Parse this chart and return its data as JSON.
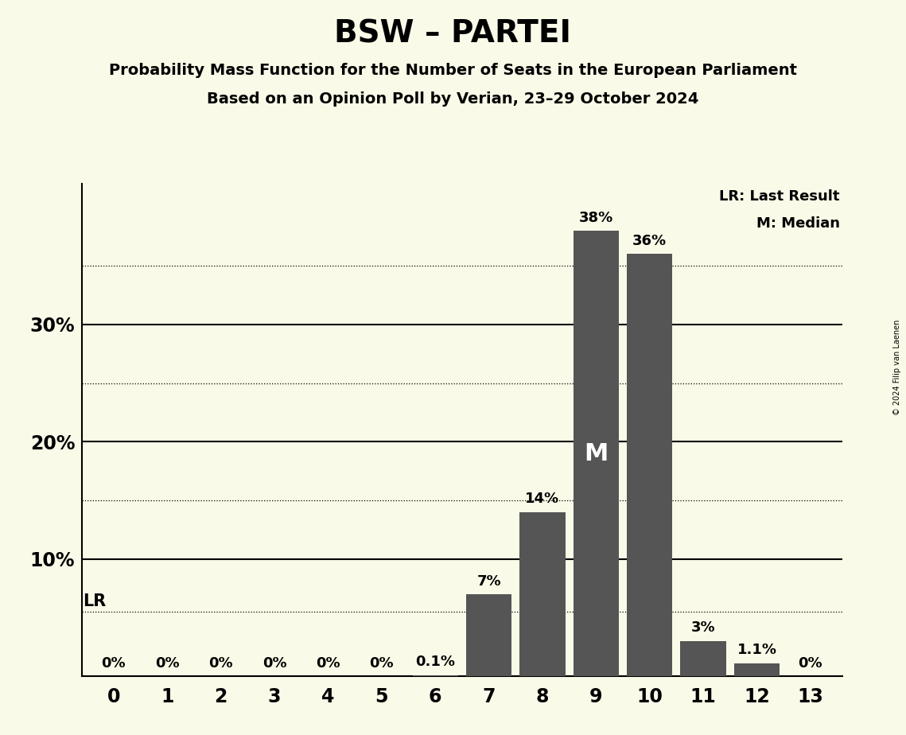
{
  "title": "BSW – PARTEI",
  "subtitle1": "Probability Mass Function for the Number of Seats in the European Parliament",
  "subtitle2": "Based on an Opinion Poll by Verian, 23–29 October 2024",
  "copyright": "© 2024 Filip van Laenen",
  "seats": [
    0,
    1,
    2,
    3,
    4,
    5,
    6,
    7,
    8,
    9,
    10,
    11,
    12,
    13
  ],
  "probabilities": [
    0.0,
    0.0,
    0.0,
    0.0,
    0.0,
    0.0,
    0.1,
    7.0,
    14.0,
    38.0,
    36.0,
    3.0,
    1.1,
    0.0
  ],
  "bar_color": "#555555",
  "bar_labels": [
    "0%",
    "0%",
    "0%",
    "0%",
    "0%",
    "0%",
    "0.1%",
    "7%",
    "14%",
    "38%",
    "36%",
    "3%",
    "1.1%",
    "0%"
  ],
  "median_seat": 9,
  "lr_line": 5.5,
  "background_color": "#fafae8",
  "dotted_lines": [
    5.5,
    15.0,
    25.0,
    35.0
  ],
  "solid_lines": [
    10.0,
    20.0,
    30.0
  ],
  "ylim": [
    0,
    42
  ],
  "xlim": [
    -0.6,
    13.6
  ]
}
